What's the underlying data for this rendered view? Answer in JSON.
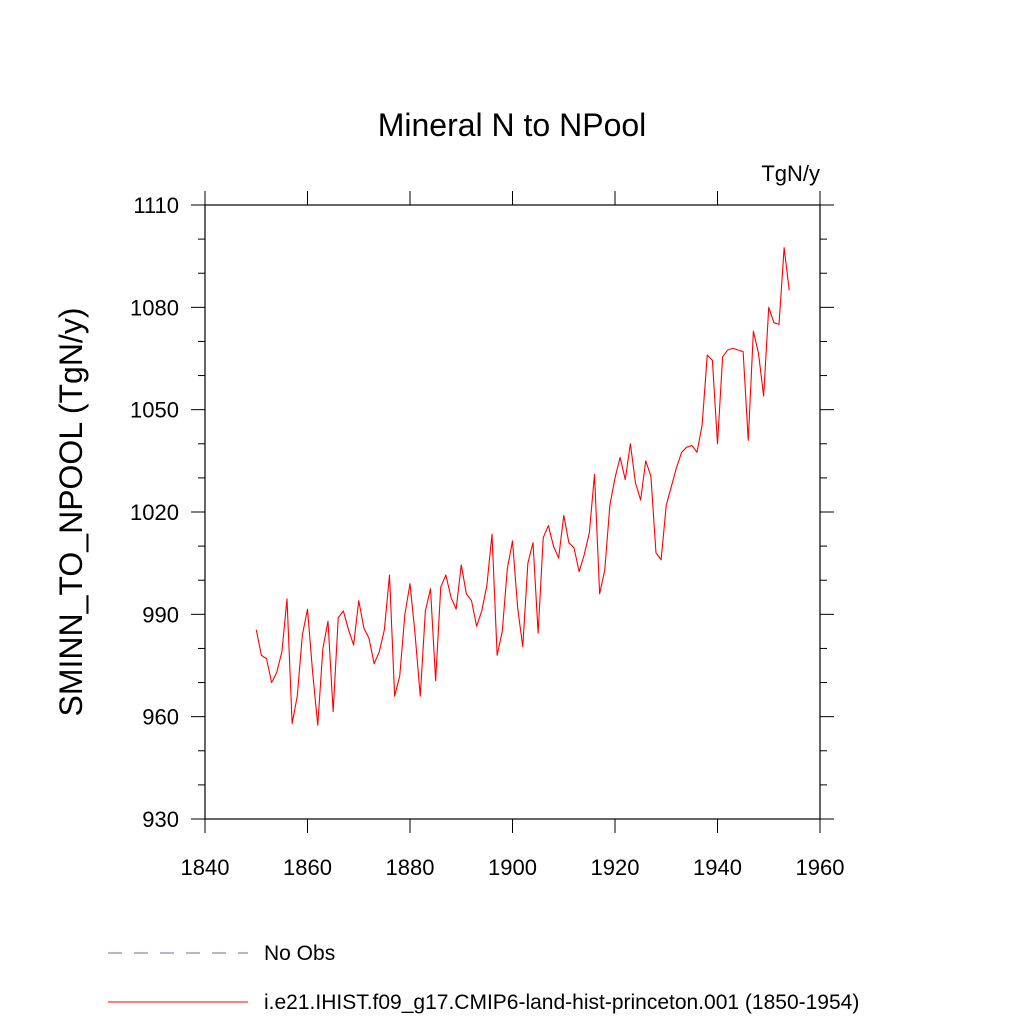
{
  "chart_data": {
    "type": "line",
    "title": "Mineral N to NPool",
    "units_label": "TgN/y",
    "xlabel": "",
    "ylabel": "SMINN_TO_NPOOL  (TgN/y)",
    "xlim": [
      1840,
      1960
    ],
    "ylim": [
      930,
      1110
    ],
    "x_ticks": [
      1840,
      1860,
      1880,
      1900,
      1920,
      1940,
      1960
    ],
    "y_ticks": [
      930,
      960,
      990,
      1020,
      1050,
      1080,
      1110
    ],
    "grid": false,
    "legend_position": "bottom",
    "legend": [
      {
        "name": "No Obs",
        "color": "#6e6ea8",
        "style": "dashed"
      },
      {
        "name": "i.e21.IHIST.f09_g17.CMIP6-land-hist-princeton.001 (1850-1954)",
        "color": "#ff0000",
        "style": "solid"
      }
    ],
    "series": [
      {
        "name": "i.e21.IHIST.f09_g17.CMIP6-land-hist-princeton.001 (1850-1954)",
        "color": "#ff0000",
        "x": [
          1850,
          1851,
          1852,
          1853,
          1854,
          1855,
          1856,
          1857,
          1858,
          1859,
          1860,
          1861,
          1862,
          1863,
          1864,
          1865,
          1866,
          1867,
          1868,
          1869,
          1870,
          1871,
          1872,
          1873,
          1874,
          1875,
          1876,
          1877,
          1878,
          1879,
          1880,
          1881,
          1882,
          1883,
          1884,
          1885,
          1886,
          1887,
          1888,
          1889,
          1890,
          1891,
          1892,
          1893,
          1894,
          1895,
          1896,
          1897,
          1898,
          1899,
          1900,
          1901,
          1902,
          1903,
          1904,
          1905,
          1906,
          1907,
          1908,
          1909,
          1910,
          1911,
          1912,
          1913,
          1914,
          1915,
          1916,
          1917,
          1918,
          1919,
          1920,
          1921,
          1922,
          1923,
          1924,
          1925,
          1926,
          1927,
          1928,
          1929,
          1930,
          1931,
          1932,
          1933,
          1934,
          1935,
          1936,
          1937,
          1938,
          1939,
          1940,
          1941,
          1942,
          1943,
          1944,
          1945,
          1946,
          1947,
          1948,
          1949,
          1950,
          1951,
          1952,
          1953,
          1954
        ],
        "y": [
          985.5,
          978,
          977,
          970,
          973,
          979,
          994.5,
          958,
          966,
          984,
          991.5,
          973,
          957.5,
          980,
          988,
          961.5,
          989,
          991,
          985.5,
          981,
          994,
          986,
          983,
          975.5,
          979,
          985.5,
          1001.5,
          966,
          972,
          990,
          999,
          984,
          966,
          991,
          997.5,
          970.5,
          998,
          1001.5,
          995,
          991.5,
          1004.5,
          996,
          994,
          986.5,
          991,
          998.5,
          1013.5,
          978,
          985,
          1003.5,
          1011.5,
          992,
          980.5,
          1005,
          1011,
          984.5,
          1012.5,
          1016,
          1010,
          1006.5,
          1019,
          1011,
          1009.5,
          1002.5,
          1007.5,
          1014,
          1031,
          996,
          1003,
          1022,
          1030,
          1036,
          1029.5,
          1040,
          1028.5,
          1023.5,
          1035,
          1030.5,
          1008,
          1006,
          1022,
          1027.5,
          1033,
          1037.5,
          1039,
          1039.5,
          1037.5,
          1045.5,
          1066,
          1064.5,
          1040,
          1065.5,
          1067.5,
          1068,
          1067.5,
          1067,
          1041,
          1073,
          1066.5,
          1054,
          1080,
          1075.5,
          1075,
          1097.5,
          1085
        ]
      }
    ]
  }
}
